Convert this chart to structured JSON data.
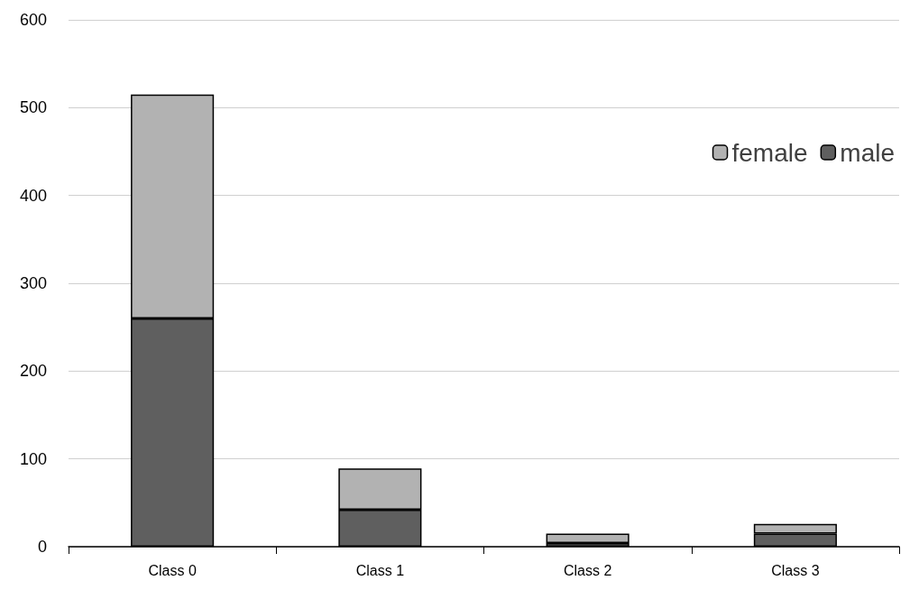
{
  "chart_data": {
    "type": "bar",
    "stacked": true,
    "categories": [
      "Class 0",
      "Class 1",
      "Class 2",
      "Class 3"
    ],
    "series": [
      {
        "name": "male",
        "color": "#5f5f5f",
        "values": [
          260,
          42,
          4,
          15
        ]
      },
      {
        "name": "female",
        "color": "#b2b2b2",
        "values": [
          255,
          47,
          11,
          11
        ]
      }
    ],
    "ylim": [
      0,
      600
    ],
    "yticks": [
      0,
      100,
      200,
      300,
      400,
      500,
      600
    ],
    "grid": "y",
    "legend": "top right"
  }
}
